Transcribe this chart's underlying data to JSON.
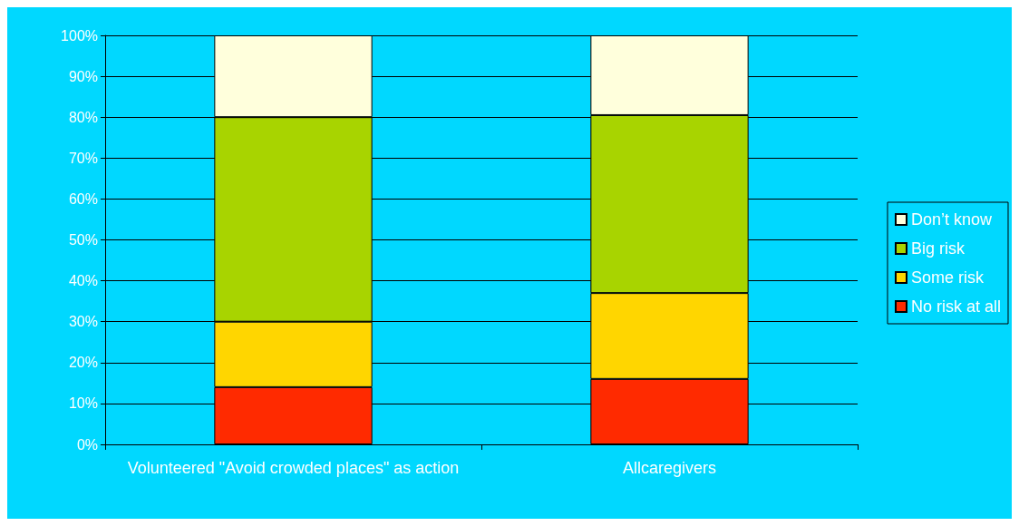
{
  "chart_data": {
    "type": "bar",
    "stacked": true,
    "categories": [
      "Volunteered \"Avoid crowded places\" as action",
      "Allcaregivers"
    ],
    "series": [
      {
        "name": "No risk at all",
        "color": "#ff2a00",
        "values": [
          14,
          16
        ]
      },
      {
        "name": "Some risk",
        "color": "#ffd600",
        "values": [
          16,
          21
        ]
      },
      {
        "name": "Big risk",
        "color": "#a8d400",
        "values": [
          50,
          43.5
        ]
      },
      {
        "name": "Don’t know",
        "color": "#ffffdc",
        "values": [
          20,
          19.5
        ]
      }
    ],
    "ylim": [
      0,
      100
    ],
    "yticks": [
      {
        "value": 0,
        "label": "0%"
      },
      {
        "value": 10,
        "label": "10%"
      },
      {
        "value": 20,
        "label": "20%"
      },
      {
        "value": 30,
        "label": "30%"
      },
      {
        "value": 40,
        "label": "40%"
      },
      {
        "value": 50,
        "label": "50%"
      },
      {
        "value": 60,
        "label": "60%"
      },
      {
        "value": 70,
        "label": "70%"
      },
      {
        "value": 80,
        "label": "80%"
      },
      {
        "value": 90,
        "label": "90%"
      },
      {
        "value": 100,
        "label": "100%"
      }
    ],
    "grid": "y",
    "legend": "right"
  }
}
